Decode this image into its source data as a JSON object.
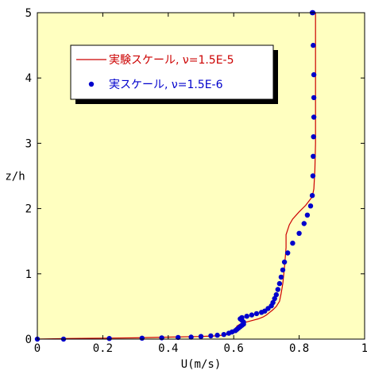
{
  "chart_data": {
    "type": "line",
    "title": "",
    "xlabel": "U(m/s)",
    "ylabel": "z/h",
    "xlim": [
      0,
      1
    ],
    "ylim": [
      0,
      5
    ],
    "xticks": [
      0,
      0.2,
      0.4,
      0.6,
      0.8,
      1
    ],
    "xtick_labels": [
      "0",
      "0.2",
      "0.4",
      "0.6",
      "0.8",
      "1"
    ],
    "yticks": [
      0,
      1,
      2,
      3,
      4,
      5
    ],
    "ytick_labels": [
      "0",
      "1",
      "2",
      "3",
      "4",
      "5"
    ],
    "grid": false,
    "legend_position": "top-left",
    "background_color": "#ffffc0",
    "series": [
      {
        "name": "実験スケール, ν=1.5E-5",
        "style": "line",
        "color": "#cc0000",
        "x": [
          0.0,
          0.1,
          0.2,
          0.3,
          0.4,
          0.5,
          0.55,
          0.58,
          0.6,
          0.605,
          0.61,
          0.62,
          0.63,
          0.645,
          0.66,
          0.675,
          0.69,
          0.7,
          0.71,
          0.72,
          0.73,
          0.74,
          0.745,
          0.75,
          0.755,
          0.76,
          0.76,
          0.77,
          0.78,
          0.8,
          0.82,
          0.84,
          0.845,
          0.848,
          0.85,
          0.85,
          0.85,
          0.85,
          0.85
        ],
        "y": [
          0.0,
          0.01,
          0.015,
          0.02,
          0.03,
          0.04,
          0.05,
          0.07,
          0.1,
          0.15,
          0.2,
          0.23,
          0.25,
          0.27,
          0.29,
          0.31,
          0.34,
          0.37,
          0.41,
          0.45,
          0.5,
          0.58,
          0.7,
          0.85,
          1.1,
          1.4,
          1.6,
          1.75,
          1.84,
          1.95,
          2.05,
          2.18,
          2.3,
          2.6,
          3.0,
          3.5,
          4.0,
          4.5,
          5.0
        ]
      },
      {
        "name": "実スケール, ν=1.5E-6",
        "style": "markers",
        "color": "#0000cc",
        "x": [
          0.0,
          0.08,
          0.22,
          0.32,
          0.38,
          0.43,
          0.47,
          0.5,
          0.53,
          0.55,
          0.57,
          0.585,
          0.595,
          0.605,
          0.61,
          0.615,
          0.62,
          0.625,
          0.63,
          0.63,
          0.625,
          0.62,
          0.625,
          0.64,
          0.655,
          0.67,
          0.685,
          0.695,
          0.705,
          0.715,
          0.72,
          0.725,
          0.73,
          0.735,
          0.74,
          0.745,
          0.75,
          0.755,
          0.765,
          0.78,
          0.8,
          0.815,
          0.825,
          0.835,
          0.84,
          0.842,
          0.843,
          0.844,
          0.845,
          0.845,
          0.845,
          0.843,
          0.842,
          0.84
        ],
        "y": [
          0.0,
          0.0,
          0.01,
          0.015,
          0.02,
          0.025,
          0.03,
          0.04,
          0.05,
          0.06,
          0.07,
          0.09,
          0.11,
          0.13,
          0.15,
          0.17,
          0.19,
          0.21,
          0.23,
          0.26,
          0.29,
          0.31,
          0.33,
          0.35,
          0.37,
          0.39,
          0.41,
          0.43,
          0.47,
          0.51,
          0.56,
          0.62,
          0.68,
          0.76,
          0.85,
          0.95,
          1.06,
          1.18,
          1.32,
          1.47,
          1.62,
          1.77,
          1.9,
          2.04,
          2.2,
          2.5,
          2.8,
          3.1,
          3.4,
          3.7,
          4.05,
          4.5,
          5.0,
          5.0
        ]
      }
    ]
  }
}
